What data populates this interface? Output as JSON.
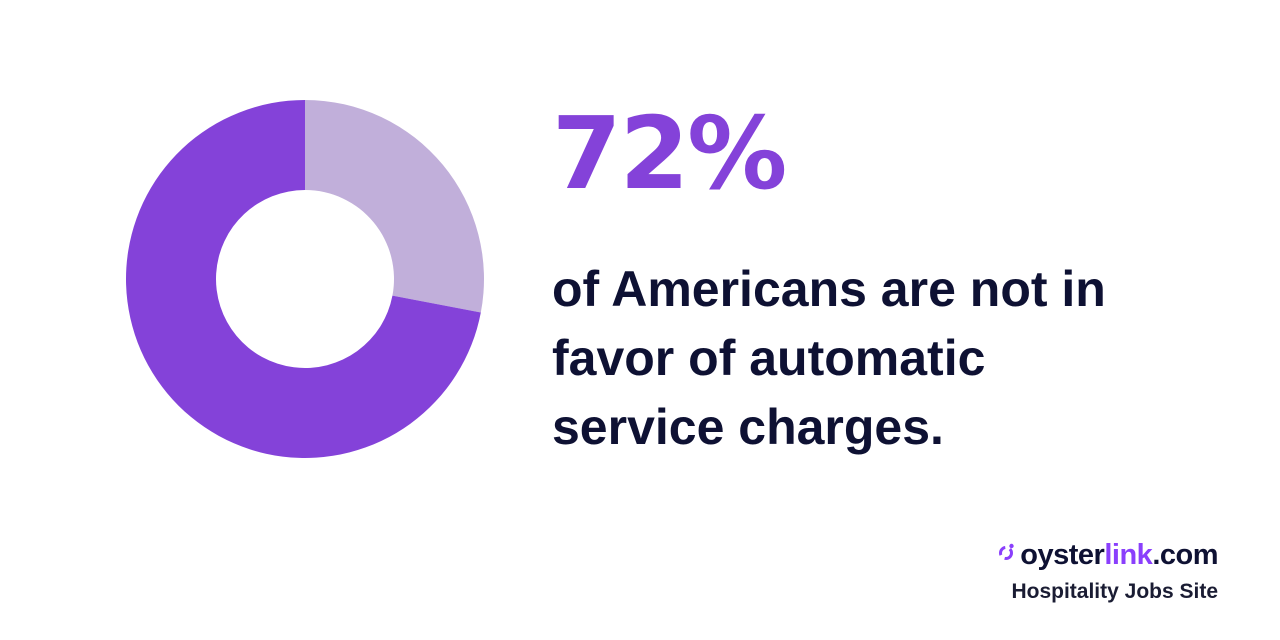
{
  "chart_data": {
    "type": "pie",
    "variant": "donut",
    "slices": [
      {
        "label": "",
        "value": 72,
        "color": "#8442d9"
      },
      {
        "label": "",
        "value": 28,
        "color": "#c1afda"
      }
    ]
  },
  "headline": {
    "stat": "72%",
    "caption_lines": [
      "of Americans are not in",
      "favor of automatic",
      "service charges."
    ]
  },
  "brand": {
    "name_main": "oyster",
    "name_accent": "link",
    "name_suffix": ".com",
    "tagline": "Hospitality Jobs Site",
    "icon": "oysterlink-logo-icon"
  },
  "colors": {
    "accent": "#8442d9",
    "accent_light": "#c1afda",
    "text_dark": "#0e1133",
    "brand_accent": "#8a3ffc"
  }
}
